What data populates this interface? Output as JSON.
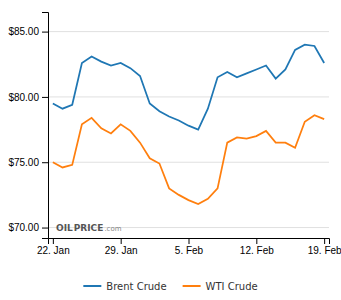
{
  "chart_data": {
    "type": "line",
    "x": [
      0,
      1,
      2,
      3,
      4,
      5,
      6,
      7,
      8,
      9,
      10,
      11,
      12,
      13,
      14,
      15,
      16,
      17,
      18,
      19,
      20,
      21,
      22,
      23,
      24,
      25,
      26,
      27,
      28
    ],
    "series": [
      {
        "name": "Brent Crude",
        "values": [
          79.5,
          79.1,
          79.4,
          82.6,
          83.1,
          82.7,
          82.4,
          82.6,
          82.2,
          81.6,
          79.5,
          78.9,
          78.5,
          78.2,
          77.8,
          77.5,
          79.1,
          81.5,
          81.9,
          81.5,
          81.8,
          82.1,
          82.4,
          81.4,
          82.1,
          83.6,
          84.0,
          83.9,
          82.6
        ]
      },
      {
        "name": "WTI Crude",
        "values": [
          75.0,
          74.6,
          74.8,
          77.9,
          78.4,
          77.6,
          77.2,
          77.9,
          77.4,
          76.5,
          75.3,
          74.9,
          73.0,
          72.5,
          72.1,
          71.8,
          72.2,
          73.0,
          76.5,
          76.9,
          76.8,
          77.0,
          77.4,
          76.5,
          76.5,
          76.1,
          78.1,
          78.6,
          78.3
        ]
      }
    ],
    "xlim": [
      -0.5,
      28.5
    ],
    "xticks": [
      {
        "value": 0,
        "label": "22. Jan"
      },
      {
        "value": 7,
        "label": "29. Jan"
      },
      {
        "value": 14,
        "label": "5. Feb"
      },
      {
        "value": 21,
        "label": "12. Feb"
      },
      {
        "value": 28,
        "label": "19. Feb"
      }
    ],
    "ylim": [
      69.2,
      86.5
    ],
    "yticks": [
      {
        "value": 70,
        "label": "$70.00"
      },
      {
        "value": 75,
        "label": "$75.00"
      },
      {
        "value": 80,
        "label": "$80.00"
      },
      {
        "value": 85,
        "label": "$85.00"
      }
    ],
    "grid": true,
    "legend": "bottom",
    "annotations": [
      "OIL",
      "PRICE",
      ".com"
    ]
  }
}
